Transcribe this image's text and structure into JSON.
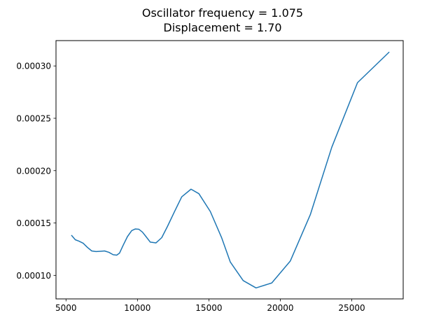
{
  "chart_data": {
    "type": "line",
    "title_line1": "Oscillator frequency = 1.075",
    "title_line2": "Displacement = 1.70",
    "xlabel": "",
    "ylabel": "",
    "xlim": [
      4300,
      28600
    ],
    "ylim": [
      7.75e-05,
      0.0003242
    ],
    "grid": false,
    "x_ticks": [
      5000,
      10000,
      15000,
      20000,
      25000
    ],
    "x_tick_labels": [
      "5000",
      "10000",
      "15000",
      "20000",
      "25000"
    ],
    "y_ticks": [
      0.0001,
      0.00015,
      0.0002,
      0.00025,
      0.0003
    ],
    "y_tick_labels": [
      "0.00010",
      "0.00015",
      "0.00020",
      "0.00025",
      "0.00030"
    ],
    "series": [
      {
        "color": "#1f77b4",
        "x": [
          5400,
          5650,
          5900,
          6200,
          6500,
          6800,
          7100,
          7400,
          7700,
          8000,
          8300,
          8550,
          8750,
          9000,
          9300,
          9600,
          9850,
          10100,
          10350,
          10600,
          10900,
          11300,
          11700,
          12100,
          12600,
          13100,
          13750,
          14300,
          15100,
          15900,
          16500,
          17400,
          18300,
          19400,
          20700,
          22100,
          23600,
          25400,
          27600
        ],
        "y": [
          0.000138,
          0.000134,
          0.0001327,
          0.0001307,
          0.0001267,
          0.0001233,
          0.0001227,
          0.000123,
          0.0001233,
          0.000122,
          0.0001197,
          0.0001193,
          0.0001213,
          0.0001287,
          0.000137,
          0.0001427,
          0.0001443,
          0.000144,
          0.0001413,
          0.000137,
          0.0001317,
          0.000131,
          0.000136,
          0.0001467,
          0.000161,
          0.000175,
          0.0001823,
          0.000178,
          0.000161,
          0.0001357,
          0.0001127,
          9.5e-05,
          8.8e-05,
          9.27e-05,
          0.0001137,
          0.000158,
          0.0002223,
          0.000284,
          0.000313
        ]
      }
    ]
  }
}
